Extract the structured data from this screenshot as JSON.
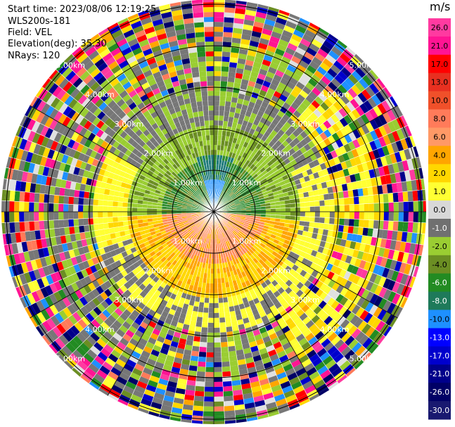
{
  "header": {
    "start_time": "Start time: 2023/08/06 12:19:25",
    "instrument": "WLS200s-181",
    "field": "Field: VEL",
    "elevation": "Elevation(deg): 35.30",
    "nrays": "NRays: 120"
  },
  "range_rings": {
    "labels": [
      "1.00km",
      "2.00km",
      "3.00km",
      "4.00km",
      "5.00km"
    ]
  },
  "colorbar": {
    "unit": "m/s",
    "ticks": [
      "26.0",
      "21.0",
      "17.0",
      "13.0",
      "10.0",
      "8.0",
      "6.0",
      "4.0",
      "2.0",
      "1.0",
      "0.0",
      "-1.0",
      "-2.0",
      "-4.0",
      "-6.0",
      "-8.0",
      "-10.0",
      "-13.0",
      "-17.0",
      "-21.0",
      "-26.0",
      "-30.0"
    ],
    "colors": [
      "#ff3aa0",
      "#ff1493",
      "#ff0000",
      "#e83020",
      "#f0502a",
      "#ff7b5a",
      "#ff9966",
      "#ffa500",
      "#ffd700",
      "#ffff33",
      "#d8d8d8",
      "#707070",
      "#9acd32",
      "#6b8e23",
      "#228b22",
      "#1e7a5a",
      "#1e90ff",
      "#0000ff",
      "#0000cd",
      "#00008b",
      "#000066",
      "#191970"
    ]
  }
}
